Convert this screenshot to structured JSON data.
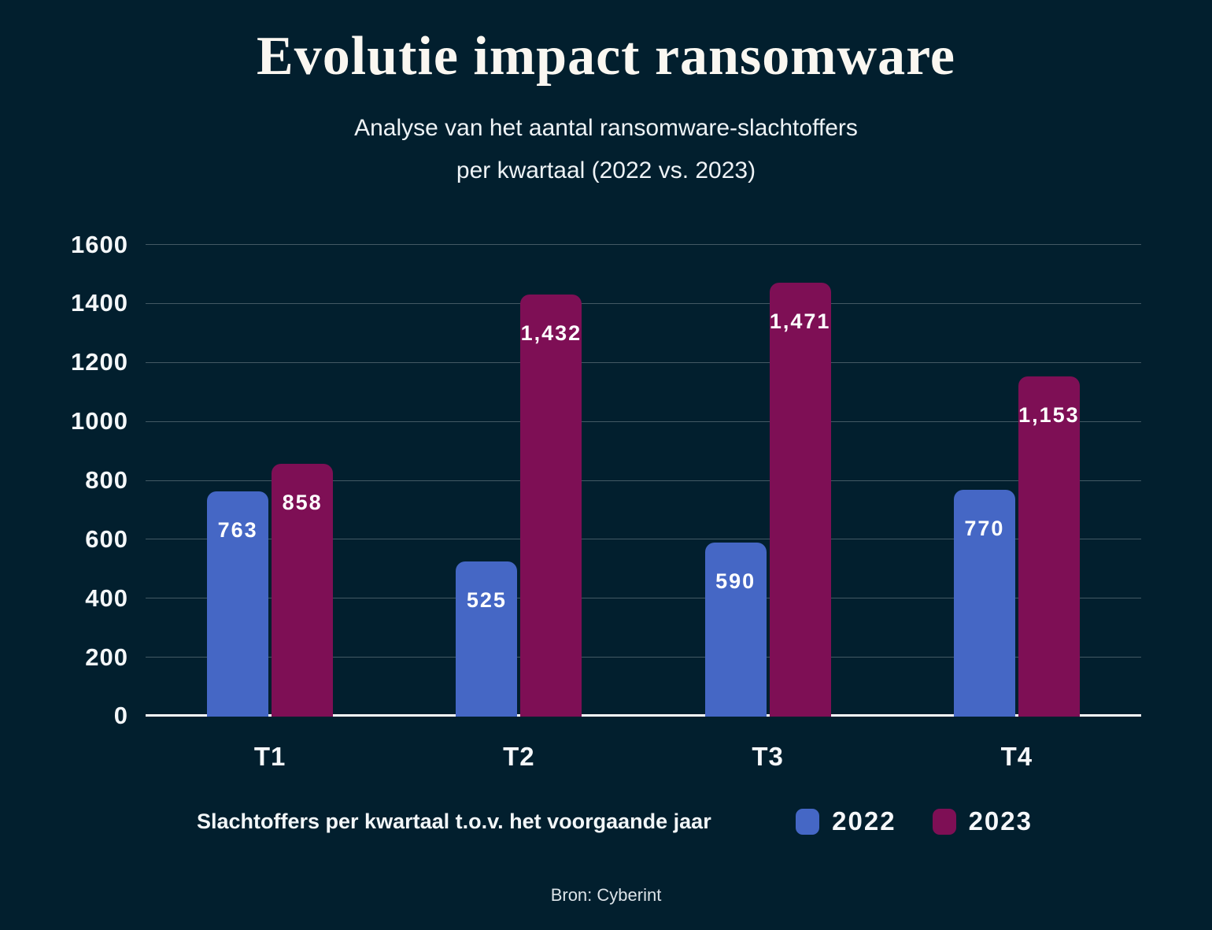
{
  "page": {
    "title": "Evolutie impact ransomware",
    "subtitle_line1": "Analyse van het aantal ransomware-slachtoffers",
    "subtitle_line2": "per kwartaal (2022 vs. 2023)",
    "source": "Bron: Cyberint"
  },
  "legend": {
    "caption": "Slachtoffers per kwartaal t.o.v. het voorgaande jaar",
    "items": [
      {
        "label": "2022",
        "color": "#4567c5"
      },
      {
        "label": "2023",
        "color": "#7e0f55"
      }
    ]
  },
  "chart_data": {
    "type": "bar",
    "title": "Evolutie impact ransomware",
    "subtitle": "Analyse van het aantal ransomware-slachtoffers per kwartaal (2022 vs. 2023)",
    "categories": [
      "T1",
      "T2",
      "T3",
      "T4"
    ],
    "series": [
      {
        "name": "2022",
        "color": "#4567c5",
        "values": [
          763,
          525,
          590,
          770
        ],
        "labels": [
          "763",
          "525",
          "590",
          "770"
        ]
      },
      {
        "name": "2023",
        "color": "#7e0f55",
        "values": [
          858,
          1432,
          1471,
          1153
        ],
        "labels": [
          "858",
          "1,432",
          "1,471",
          "1,153"
        ]
      }
    ],
    "xlabel": "",
    "ylabel": "",
    "ylim": [
      0,
      1600
    ],
    "yticks": [
      0,
      200,
      400,
      600,
      800,
      1000,
      1200,
      1400,
      1600
    ],
    "grid": true,
    "legend_position": "bottom",
    "background_color": "#021f2e",
    "gridline_color": "rgba(255,255,255,0.26)",
    "baseline_color": "#ffffff",
    "source": "Bron: Cyberint"
  }
}
